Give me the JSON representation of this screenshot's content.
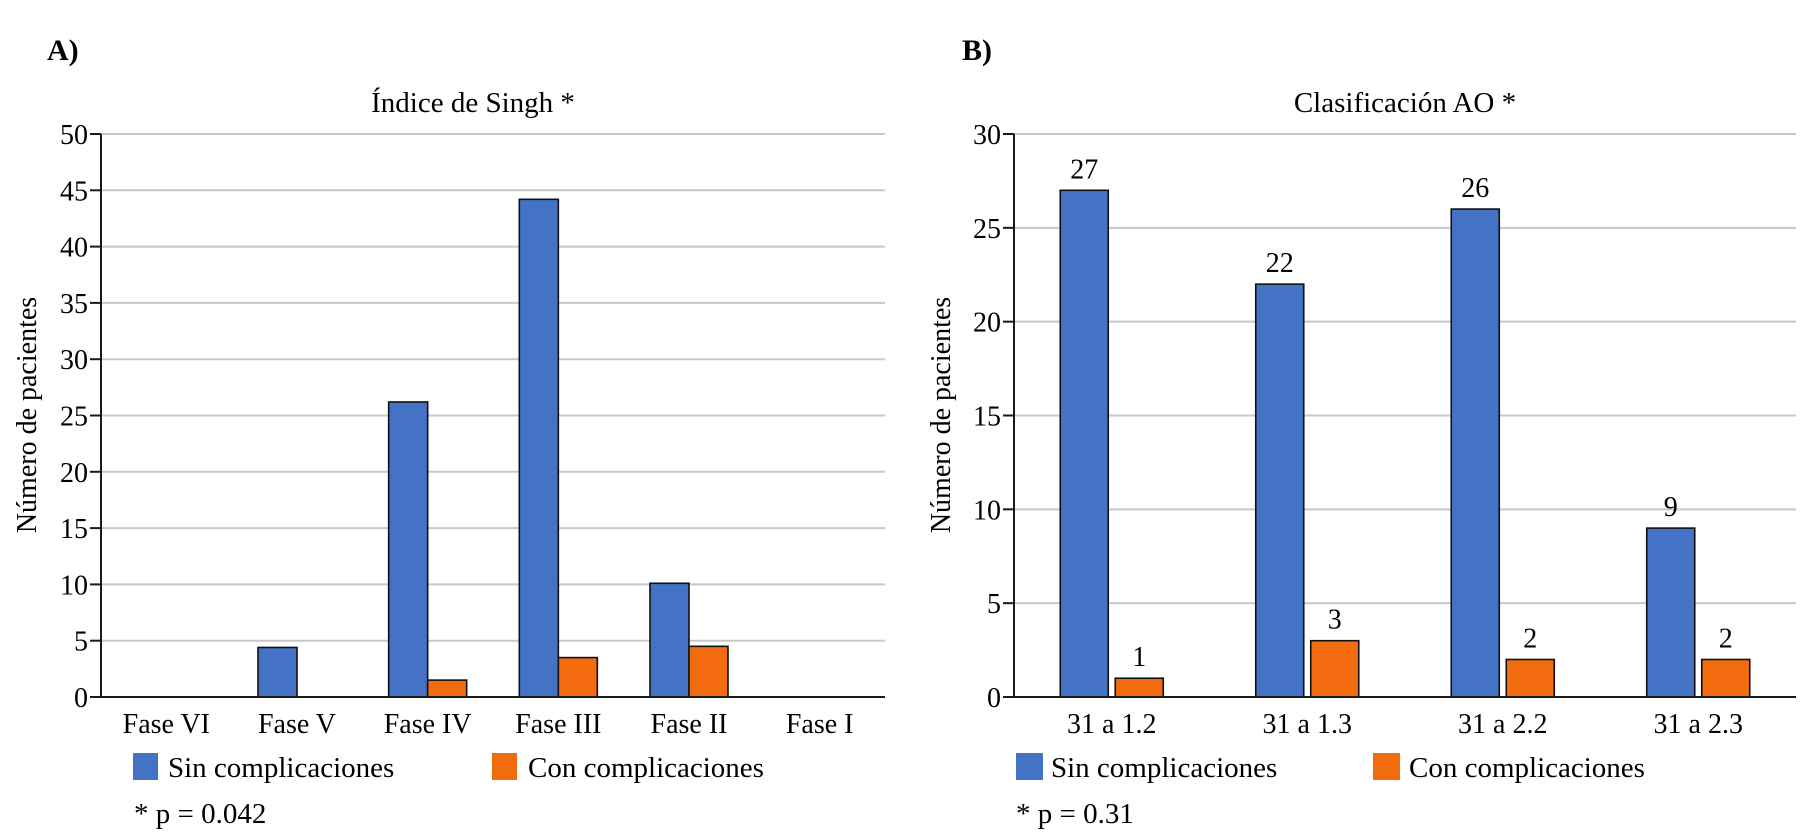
{
  "figure": {
    "panels": [
      "A)",
      "B)"
    ]
  },
  "chart_data": [
    {
      "type": "bar",
      "panel": "A)",
      "title": "Índice de Singh *",
      "xlabel": "",
      "ylabel": "Número de pacientes",
      "ylim": [
        0,
        50
      ],
      "yticks": [
        "0",
        "5",
        "10",
        "15",
        "20",
        "25",
        "30",
        "35",
        "40",
        "45",
        "50"
      ],
      "ytick_step": 5,
      "grid": true,
      "categories": [
        "Fase VI",
        "Fase V",
        "Fase IV",
        "Fase III",
        "Fase II",
        "Fase I"
      ],
      "series": [
        {
          "name": "Sin complicaciones",
          "color": "#4472C4",
          "values": [
            0,
            4.4,
            26.2,
            44.2,
            10.1,
            0
          ]
        },
        {
          "name": "Con complicaciones",
          "color": "#F26B0F",
          "values": [
            0,
            0,
            1.5,
            3.5,
            4.5,
            0
          ]
        }
      ],
      "data_labels": false,
      "legend_position": "bottom-left",
      "footnote": "* p = 0.042"
    },
    {
      "type": "bar",
      "panel": "B)",
      "title": "Clasificación AO *",
      "xlabel": "",
      "ylabel": "Número de pacientes",
      "ylim": [
        0,
        30
      ],
      "yticks": [
        "0",
        "5",
        "10",
        "15",
        "20",
        "25",
        "30"
      ],
      "ytick_step": 5,
      "grid": true,
      "categories": [
        "31 a 1.2",
        "31 a 1.3",
        "31 a 2.2",
        "31 a 2.3"
      ],
      "series": [
        {
          "name": "Sin complicaciones",
          "color": "#4472C4",
          "values": [
            27,
            22,
            26,
            9
          ]
        },
        {
          "name": "Con complicaciones",
          "color": "#F26B0F",
          "values": [
            1,
            3,
            2,
            2
          ]
        }
      ],
      "data_labels": true,
      "legend_position": "bottom-left",
      "footnote": "* p = 0.31"
    }
  ]
}
